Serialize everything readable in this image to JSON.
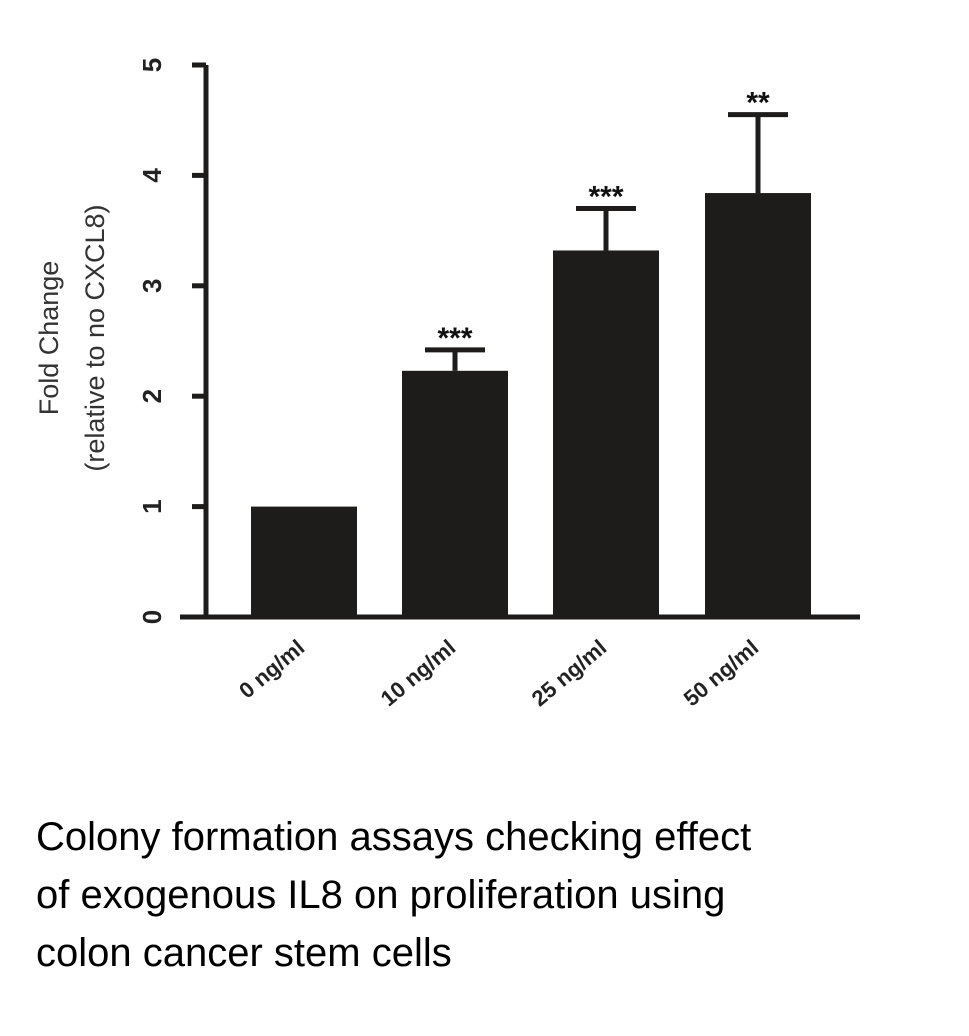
{
  "chart_data": {
    "type": "bar",
    "categories": [
      "0 ng/ml",
      "10 ng/ml",
      "25 ng/ml",
      "50 ng/ml"
    ],
    "values": [
      1.0,
      2.23,
      3.32,
      3.84
    ],
    "error_upper": [
      1.0,
      2.42,
      3.7,
      4.55
    ],
    "significance": [
      "",
      "***",
      "***",
      "**"
    ],
    "ylabel": [
      "Fold Change",
      "(relative to no CXCL8)"
    ],
    "ylim": [
      0,
      5
    ],
    "yticks": [
      0,
      1,
      2,
      3,
      4,
      5
    ],
    "bar_color": "#1e1b1b",
    "grid": false
  },
  "caption": {
    "lines": [
      "Colony formation assays checking effect",
      "of exogenous IL8 on proliferation using",
      "colon cancer stem cells"
    ]
  }
}
